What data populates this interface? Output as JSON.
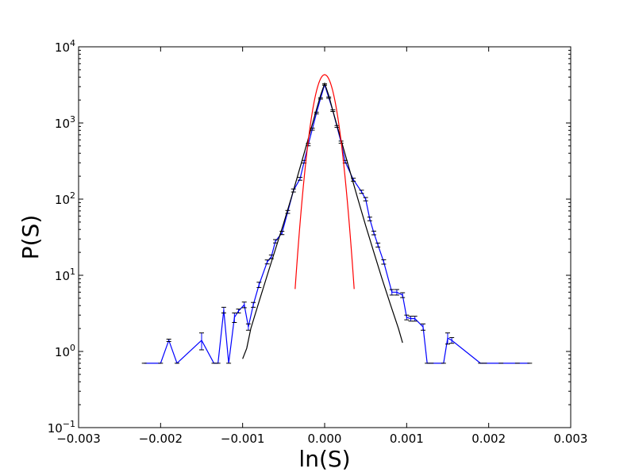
{
  "chart_data": {
    "type": "line",
    "xlabel": "ln(S)",
    "ylabel": "P(S)",
    "yscale": "log",
    "xlim": [
      -0.003,
      0.003
    ],
    "ylim_exponents": [
      -1,
      4
    ],
    "x_ticks": [
      "−0.003",
      "−0.002",
      "−0.001",
      "0.000",
      "0.001",
      "0.002",
      "0.003"
    ],
    "y_ticks": [
      {
        "base": "10",
        "exp": "−1"
      },
      {
        "base": "10",
        "exp": "0"
      },
      {
        "base": "10",
        "exp": "1"
      },
      {
        "base": "10",
        "exp": "2"
      },
      {
        "base": "10",
        "exp": "3"
      },
      {
        "base": "10",
        "exp": "4"
      }
    ],
    "grid": false,
    "series": [
      {
        "color": "#0000ff",
        "style": "line-with-errorbars",
        "points": [
          [
            -0.0022,
            0.7,
            0.0
          ],
          [
            -0.002,
            0.7,
            0.0
          ],
          [
            -0.0019,
            1.4,
            0.05
          ],
          [
            -0.0018,
            0.7,
            0.0
          ],
          [
            -0.0015,
            1.4,
            0.35
          ],
          [
            -0.00135,
            0.7,
            0.0
          ],
          [
            -0.0013,
            0.7,
            0.0
          ],
          [
            -0.00123,
            3.5,
            0.3
          ],
          [
            -0.00117,
            0.7,
            0.0
          ],
          [
            -0.0011,
            2.8,
            0.4
          ],
          [
            -0.00105,
            3.4,
            0.2
          ],
          [
            -0.00098,
            4.1,
            0.35
          ],
          [
            -0.00093,
            2.1,
            0.2
          ],
          [
            -0.00087,
            4.1,
            0.3
          ],
          [
            -0.0008,
            7.5,
            0.6
          ],
          [
            -0.0007,
            15,
            0.9
          ],
          [
            -0.00065,
            17.5,
            1.0
          ],
          [
            -0.0006,
            28,
            1.4
          ],
          [
            -0.00052,
            36,
            1.8
          ],
          [
            -0.00045,
            68,
            3
          ],
          [
            -0.00038,
            130,
            6
          ],
          [
            -0.0003,
            185,
            8
          ],
          [
            -0.00025,
            310,
            12
          ],
          [
            -0.0002,
            520,
            18
          ],
          [
            -0.00015,
            830,
            25
          ],
          [
            -0.0001,
            1350,
            35
          ],
          [
            -5e-05,
            2100,
            45
          ],
          [
            0.0,
            3200,
            60
          ],
          [
            5e-05,
            2150,
            45
          ],
          [
            0.0001,
            1450,
            35
          ],
          [
            0.00015,
            900,
            25
          ],
          [
            0.0002,
            560,
            18
          ],
          [
            0.00025,
            310,
            12
          ],
          [
            0.00035,
            180,
            8
          ],
          [
            0.00045,
            125,
            6
          ],
          [
            0.0005,
            100,
            5
          ],
          [
            0.00055,
            55,
            3
          ],
          [
            0.0006,
            36,
            2
          ],
          [
            0.00065,
            25,
            1.5
          ],
          [
            0.00072,
            15,
            1.0
          ],
          [
            0.00082,
            6.0,
            0.5
          ],
          [
            0.00088,
            6.0,
            0.5
          ],
          [
            0.00095,
            5.5,
            0.4
          ],
          [
            0.001,
            2.8,
            0.2
          ],
          [
            0.00105,
            2.7,
            0.2
          ],
          [
            0.0011,
            2.7,
            0.2
          ],
          [
            0.0012,
            2.1,
            0.2
          ],
          [
            0.00125,
            0.7,
            0.0
          ],
          [
            0.0013,
            0.7,
            0.0
          ],
          [
            0.00145,
            0.7,
            0.0
          ],
          [
            0.0015,
            1.5,
            0.25
          ],
          [
            0.00155,
            1.4,
            0.12
          ],
          [
            0.0019,
            0.7,
            0.0
          ],
          [
            0.00195,
            0.7,
            0.0
          ],
          [
            0.00215,
            0.7,
            0.0
          ],
          [
            0.00235,
            0.7,
            0.0
          ],
          [
            0.0025,
            0.7,
            0.0
          ]
        ]
      },
      {
        "color": "#000000",
        "style": "line",
        "x": [
          -0.001,
          -0.00095,
          -0.0009,
          -0.0008,
          -0.0007,
          -0.0006,
          -0.0005,
          -0.0004,
          -0.0003,
          -0.0002,
          -0.0001,
          -5e-05,
          0.0,
          5e-05,
          0.0001,
          0.0002,
          0.0003,
          0.0004,
          0.0005,
          0.0006,
          0.0007,
          0.0008,
          0.0009,
          0.00095
        ],
        "y": [
          0.8,
          1.1,
          2.0,
          4.5,
          10,
          22,
          48,
          110,
          260,
          620,
          1500,
          2300,
          3300,
          2300,
          1450,
          600,
          250,
          105,
          45,
          20,
          9,
          4.2,
          2.0,
          1.3
        ]
      },
      {
        "color": "#ff0000",
        "style": "line",
        "gaussian": {
          "amplitude": 4300,
          "mean": 0.0,
          "sigma": 0.0001
        },
        "x_range": [
          -0.00036,
          0.00036
        ]
      }
    ]
  }
}
